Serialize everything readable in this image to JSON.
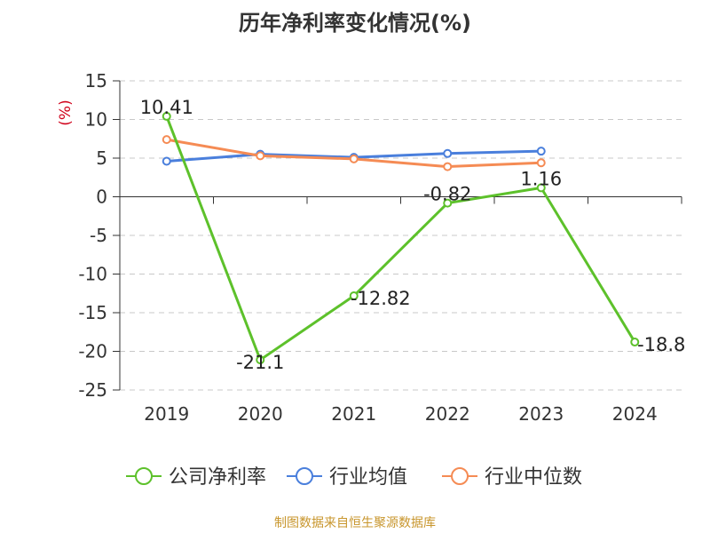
{
  "title": "历年净利率变化情况(%)",
  "source": "制图数据来自恒生聚源数据库",
  "chart_data": {
    "type": "line",
    "title": "历年净利率变化情况(%)",
    "ylabel": "(%)",
    "ylim": [
      -25,
      15
    ],
    "yticks": [
      15,
      10,
      5,
      0,
      -5,
      -10,
      -15,
      -20,
      -25
    ],
    "categories": [
      "2019",
      "2020",
      "2021",
      "2022",
      "2023",
      "2024"
    ],
    "grid": true,
    "legend_position": "bottom",
    "series": [
      {
        "name": "公司净利率",
        "color": "#5dc12b",
        "values": [
          10.41,
          -21.1,
          -12.82,
          -0.82,
          1.16,
          -18.8
        ],
        "labels": [
          "10.41",
          "-21.1",
          "-12.82",
          "-0.82",
          "1.16",
          "-18.8"
        ]
      },
      {
        "name": "行业均值",
        "color": "#4a7fdc",
        "values": [
          4.6,
          5.5,
          5.1,
          5.6,
          5.9,
          null
        ]
      },
      {
        "name": "行业中位数",
        "color": "#f58b54",
        "values": [
          7.4,
          5.3,
          4.9,
          3.9,
          4.4,
          null
        ]
      }
    ]
  }
}
